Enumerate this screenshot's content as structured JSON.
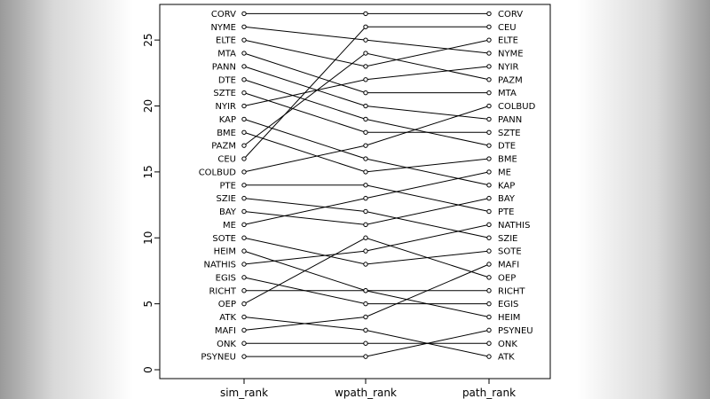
{
  "chart_data": {
    "type": "line",
    "title": "",
    "ylim": [
      0,
      27
    ],
    "yticks": [
      0,
      5,
      10,
      15,
      20,
      25
    ],
    "categories": [
      "sim_rank",
      "wpath_rank",
      "path_rank"
    ],
    "series": [
      {
        "label": "CORV",
        "values": [
          27,
          27,
          27
        ]
      },
      {
        "label": "NYME",
        "values": [
          26,
          25,
          24
        ]
      },
      {
        "label": "ELTE",
        "values": [
          25,
          23,
          25
        ]
      },
      {
        "label": "MTA",
        "values": [
          24,
          21,
          21
        ]
      },
      {
        "label": "PANN",
        "values": [
          23,
          20,
          19
        ]
      },
      {
        "label": "DTE",
        "values": [
          22,
          19,
          17
        ]
      },
      {
        "label": "SZTE",
        "values": [
          21,
          18,
          18
        ]
      },
      {
        "label": "NYIR",
        "values": [
          20,
          22,
          23
        ]
      },
      {
        "label": "KAP",
        "values": [
          19,
          16,
          14
        ]
      },
      {
        "label": "BME",
        "values": [
          18,
          15,
          16
        ]
      },
      {
        "label": "PAZM",
        "values": [
          17,
          24,
          22
        ]
      },
      {
        "label": "CEU",
        "values": [
          16,
          26,
          26
        ]
      },
      {
        "label": "COLBUD",
        "values": [
          15,
          17,
          20
        ]
      },
      {
        "label": "PTE",
        "values": [
          14,
          14,
          12
        ]
      },
      {
        "label": "SZIE",
        "values": [
          13,
          12,
          10
        ]
      },
      {
        "label": "BAY",
        "values": [
          12,
          11,
          13
        ]
      },
      {
        "label": "ME",
        "values": [
          11,
          13,
          15
        ]
      },
      {
        "label": "SOTE",
        "values": [
          10,
          8,
          9
        ]
      },
      {
        "label": "HEIM",
        "values": [
          9,
          6,
          4
        ]
      },
      {
        "label": "NATHIS",
        "values": [
          8,
          9,
          11
        ]
      },
      {
        "label": "EGIS",
        "values": [
          7,
          5,
          5
        ]
      },
      {
        "label": "RICHT",
        "values": [
          6,
          6,
          6
        ]
      },
      {
        "label": "OEP",
        "values": [
          5,
          10,
          7
        ]
      },
      {
        "label": "ATK",
        "values": [
          4,
          3,
          1
        ]
      },
      {
        "label": "MAFI",
        "values": [
          3,
          4,
          8
        ]
      },
      {
        "label": "ONK",
        "values": [
          2,
          2,
          2
        ]
      },
      {
        "label": "PSYNEU",
        "values": [
          1,
          1,
          3
        ]
      }
    ]
  }
}
